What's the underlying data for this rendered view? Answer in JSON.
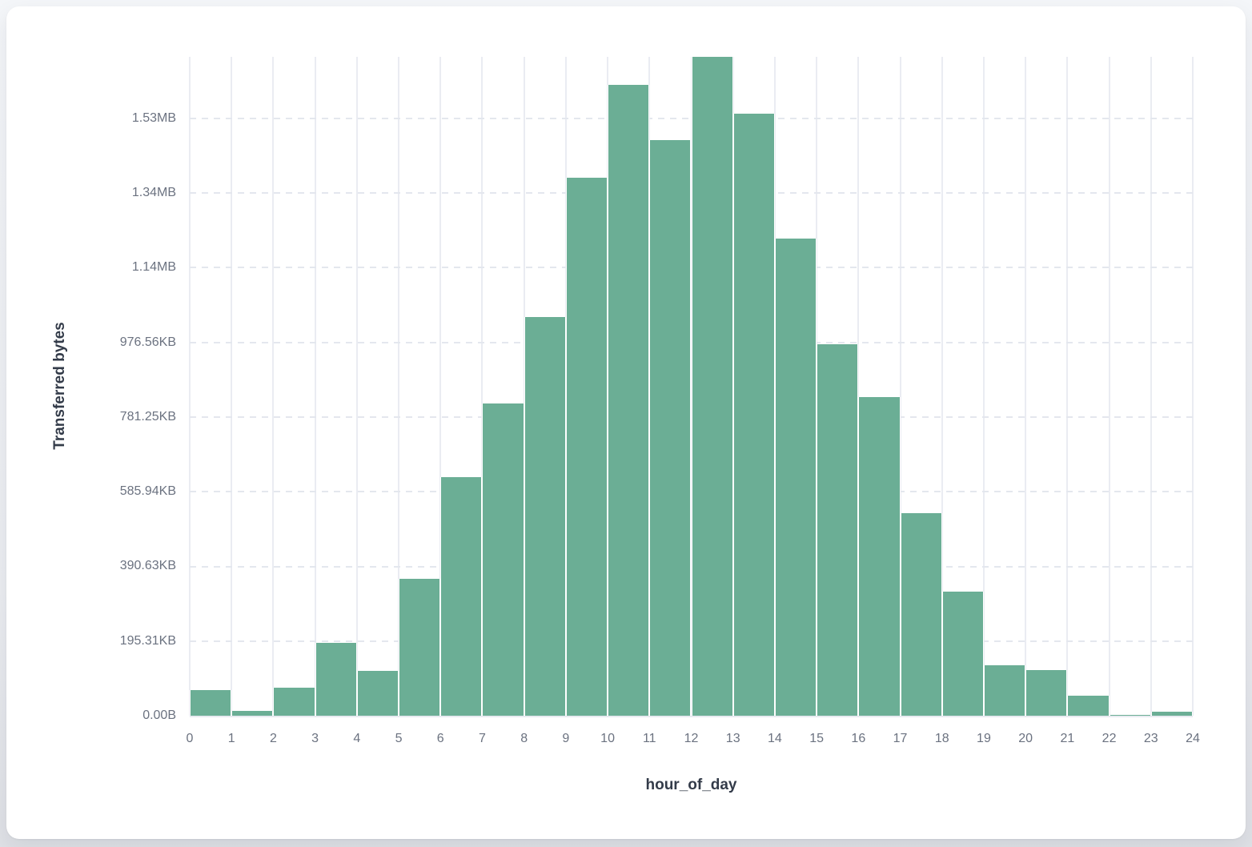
{
  "chart_data": {
    "type": "bar",
    "subtype": "histogram",
    "title": "",
    "xlabel": "hour_of_day",
    "ylabel": "Transferred bytes",
    "x_bin_edges": [
      0,
      1,
      2,
      3,
      4,
      5,
      6,
      7,
      8,
      9,
      10,
      11,
      12,
      13,
      14,
      15,
      16,
      17,
      18,
      19,
      20,
      21,
      22,
      23,
      24
    ],
    "x_tick_labels": [
      "0",
      "1",
      "2",
      "3",
      "4",
      "5",
      "6",
      "7",
      "8",
      "9",
      "10",
      "11",
      "12",
      "13",
      "14",
      "15",
      "16",
      "17",
      "18",
      "19",
      "20",
      "21",
      "22",
      "23",
      "24"
    ],
    "values_bytes": [
      69000,
      13000,
      75000,
      196000,
      121000,
      366000,
      639000,
      836000,
      1067000,
      1441000,
      1689000,
      1543000,
      1765000,
      1612000,
      1278000,
      995000,
      854000,
      542000,
      332000,
      136000,
      122000,
      54000,
      2500,
      11500
    ],
    "y_axis": {
      "min_bytes": 0,
      "max_bytes": 1765000,
      "tick_step_bytes": 200000,
      "tick_values_bytes": [
        0,
        200000,
        400000,
        600000,
        800000,
        1000000,
        1200000,
        1400000,
        1600000
      ],
      "tick_labels": [
        "0.00B",
        "195.31KB",
        "390.63KB",
        "585.94KB",
        "781.25KB",
        "976.56KB",
        "1.14MB",
        "1.34MB",
        "1.53MB"
      ]
    },
    "grid": true,
    "legend": false,
    "bar_color": "#6bae95"
  },
  "colors": {
    "bar": "#6bae95",
    "gridline": "#e8eaf0",
    "tick_label": "#6b7280",
    "axis_title": "#333b49",
    "card_background": "#ffffff",
    "page_background": "#ebedf1"
  }
}
